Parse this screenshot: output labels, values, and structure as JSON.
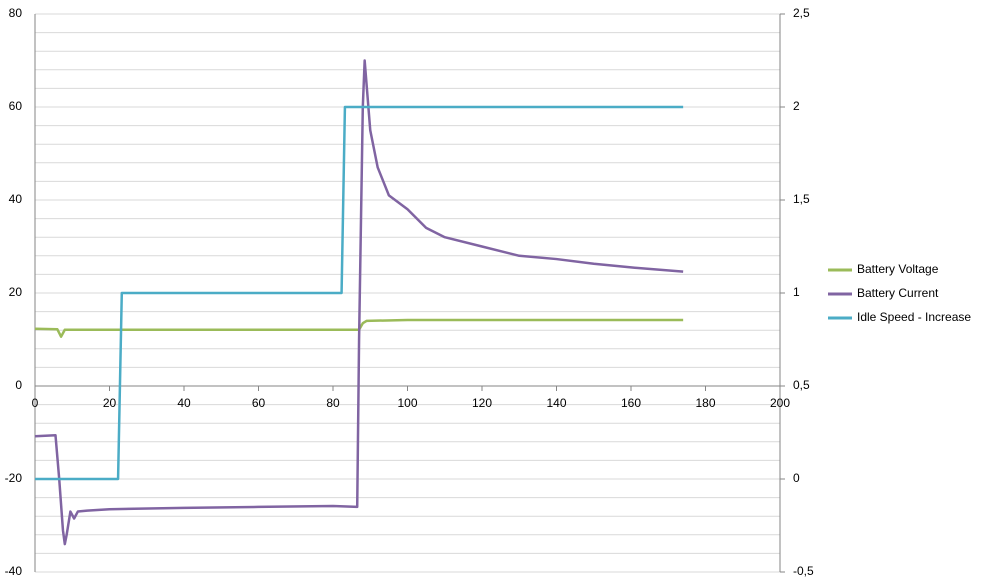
{
  "chart_data": {
    "type": "line",
    "xlim": [
      0,
      200
    ],
    "xticks": [
      0,
      20,
      40,
      60,
      80,
      100,
      120,
      140,
      160,
      180,
      200
    ],
    "ylim": [
      -40,
      80
    ],
    "yticks": [
      -40,
      -20,
      0,
      20,
      40,
      60,
      80
    ],
    "y2lim": [
      -0.5,
      2.5
    ],
    "y2ticks": [
      {
        "value": -0.5,
        "label": "-0,5"
      },
      0,
      {
        "value": 0.5,
        "label": "0,5"
      },
      1,
      {
        "value": 1.5,
        "label": "1,5"
      },
      2,
      {
        "value": 2.5,
        "label": "2,5"
      }
    ],
    "grid": true,
    "legend": "right",
    "series": [
      {
        "name": "Battery Voltage",
        "color": "#9bbb59",
        "x": [
          0,
          6,
          7,
          8,
          87,
          88,
          89,
          100,
          174
        ],
        "values": [
          12.3,
          12.2,
          10.6,
          12.1,
          12.1,
          13.5,
          14,
          14.2,
          14.2
        ]
      },
      {
        "name": "Battery Current",
        "color": "#8064a2",
        "x": [
          0,
          5.5,
          6.5,
          7.5,
          8,
          8.5,
          9.5,
          10.5,
          11.5,
          14,
          20,
          40,
          60,
          80,
          86.5,
          87,
          88,
          88.5,
          89,
          90,
          92,
          95,
          100,
          105,
          110,
          120,
          130,
          140,
          150,
          160,
          174
        ],
        "values": [
          -10.8,
          -10.6,
          -20,
          -31,
          -34,
          -32,
          -27,
          -28.5,
          -27,
          -26.8,
          -26.5,
          -26.2,
          -26,
          -25.8,
          -26,
          10,
          60,
          70,
          65,
          55,
          47,
          41,
          38,
          34,
          32,
          30,
          28,
          27.3,
          26.3,
          25.5,
          24.6
        ]
      },
      {
        "name": "Idle Speed - Increase",
        "color": "#4bacc6",
        "axis": "y2",
        "x": [
          0,
          22.3,
          23.3,
          82.3,
          83.2,
          174
        ],
        "values": [
          0,
          0,
          1,
          1,
          2,
          2
        ]
      }
    ]
  }
}
